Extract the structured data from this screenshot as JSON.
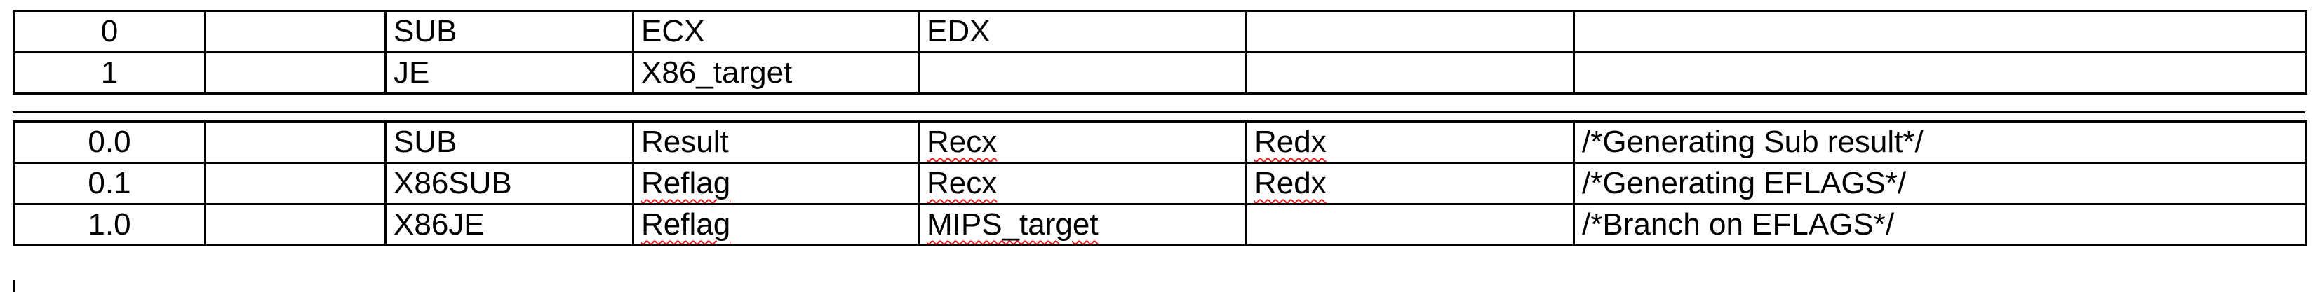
{
  "x86_table": {
    "rows": [
      {
        "cells": [
          "0",
          "",
          "SUB",
          "ECX",
          "EDX",
          "",
          ""
        ]
      },
      {
        "cells": [
          "1",
          "",
          "JE",
          "X86_target",
          "",
          "",
          ""
        ]
      }
    ]
  },
  "mips_table": {
    "rows": [
      {
        "cells": [
          "0.0",
          "",
          "SUB",
          "Result",
          "Recx",
          "Redx",
          "/*Generating Sub result*/"
        ]
      },
      {
        "cells": [
          "0.1",
          "",
          "X86SUB",
          "Reflag",
          "Recx",
          "Redx",
          "/*Generating EFLAGS*/"
        ]
      },
      {
        "cells": [
          "1.0",
          "",
          "X86JE",
          "Reflag",
          "MIPS_target",
          "",
          "/*Branch on EFLAGS*/"
        ]
      }
    ]
  }
}
